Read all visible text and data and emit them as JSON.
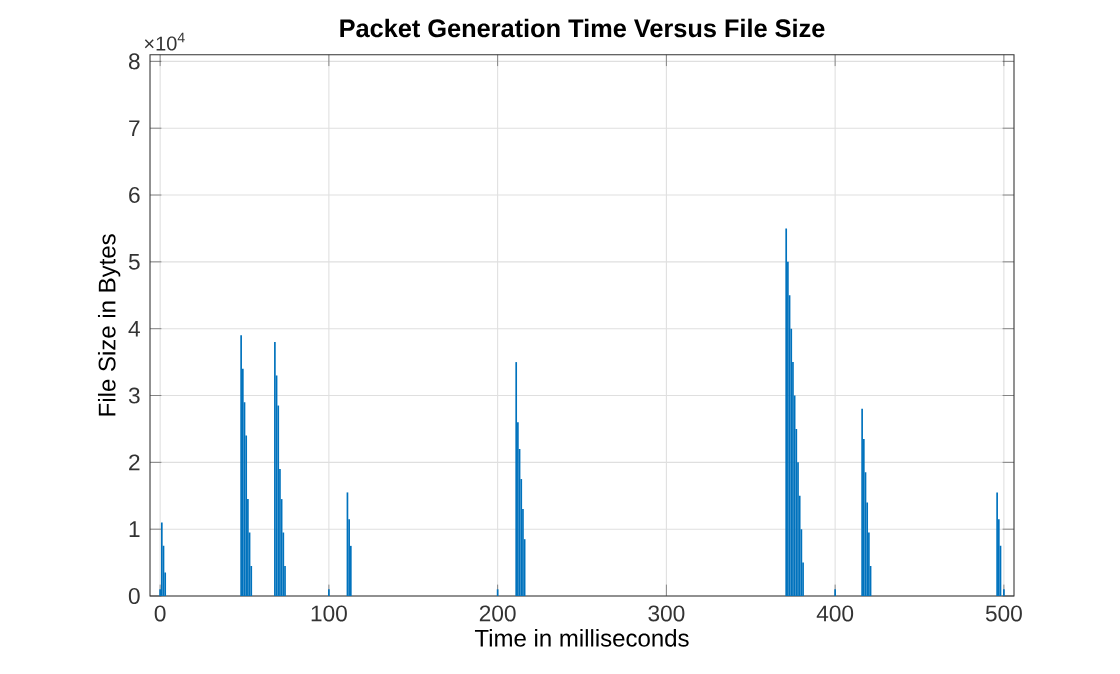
{
  "chart_data": {
    "type": "bar",
    "title": "Packet Generation Time Versus File Size",
    "xlabel": "Time in milliseconds",
    "ylabel": "File Size in Bytes",
    "annotations": [
      "×10$^{4}$"
    ],
    "x": [
      0,
      1,
      2,
      3,
      48,
      49,
      50,
      51,
      52,
      53,
      54,
      68,
      69,
      70,
      71,
      72,
      73,
      74,
      100,
      111,
      112,
      113,
      200,
      211,
      212,
      213,
      214,
      215,
      216,
      371,
      372,
      373,
      374,
      375,
      376,
      377,
      378,
      379,
      380,
      381,
      400,
      416,
      417,
      418,
      419,
      420,
      421,
      496,
      497,
      498,
      500
    ],
    "values": [
      0.1,
      1.1,
      0.75,
      0.35,
      3.9,
      3.4,
      2.9,
      2.4,
      1.45,
      0.95,
      0.45,
      3.8,
      3.3,
      2.85,
      1.9,
      1.45,
      0.95,
      0.45,
      0.1,
      1.55,
      1.15,
      0.75,
      0.1,
      3.5,
      2.6,
      2.2,
      1.75,
      1.3,
      0.85,
      5.5,
      5.0,
      4.5,
      4.0,
      3.5,
      3.0,
      2.5,
      2.0,
      1.5,
      1.0,
      0.5,
      0.1,
      2.8,
      2.35,
      1.85,
      1.4,
      0.95,
      0.45,
      1.55,
      1.15,
      0.75,
      0.1
    ],
    "color": "#0072bd",
    "xlim": [
      -6,
      506
    ],
    "ylim": [
      0,
      8.1
    ],
    "xticks": [
      0,
      100,
      200,
      300,
      400,
      500
    ],
    "yticks": [
      0,
      1,
      2,
      3,
      4,
      5,
      6,
      7,
      8
    ],
    "grid": true
  }
}
